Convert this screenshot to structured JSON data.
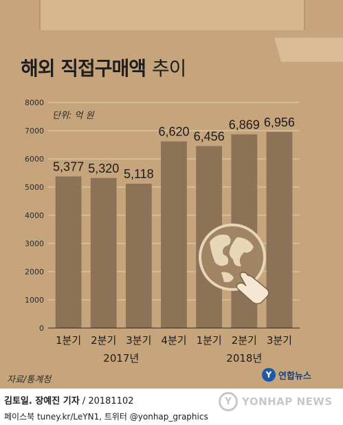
{
  "header": {
    "title_main": "해외 직접구매액",
    "title_sub": "추이"
  },
  "chart_data": {
    "type": "bar",
    "unit": "단위: 억 원",
    "categories": [
      "1분기",
      "2분기",
      "3분기",
      "4분기",
      "1분기",
      "2분기",
      "3분기"
    ],
    "groups": [
      {
        "label": "2017년",
        "start": 0,
        "end": 3
      },
      {
        "label": "2018년",
        "start": 4,
        "end": 6
      }
    ],
    "values": [
      5377,
      5320,
      5118,
      6620,
      6456,
      6869,
      6956
    ],
    "value_labels": [
      "5,377",
      "5,320",
      "5,118",
      "6,620",
      "6,456",
      "6,869",
      "6,956"
    ],
    "ylim": [
      0,
      8000
    ],
    "yticks": [
      0,
      1000,
      2000,
      3000,
      4000,
      5000,
      6000,
      7000,
      8000
    ],
    "grid": true,
    "bar_color": "#8c7358"
  },
  "footer": {
    "source": "자료/통계청",
    "logo_mark": "Y",
    "logo_text": "연합뉴스",
    "credit_names": "김토일. 장예진 기자",
    "credit_date": " / 20181102",
    "social": "페이스북 tuney.kr/LeYN1, 트위터 @yonhap_graphics",
    "watermark_mark": "Y",
    "watermark_text": "YONHAP NEWS"
  }
}
